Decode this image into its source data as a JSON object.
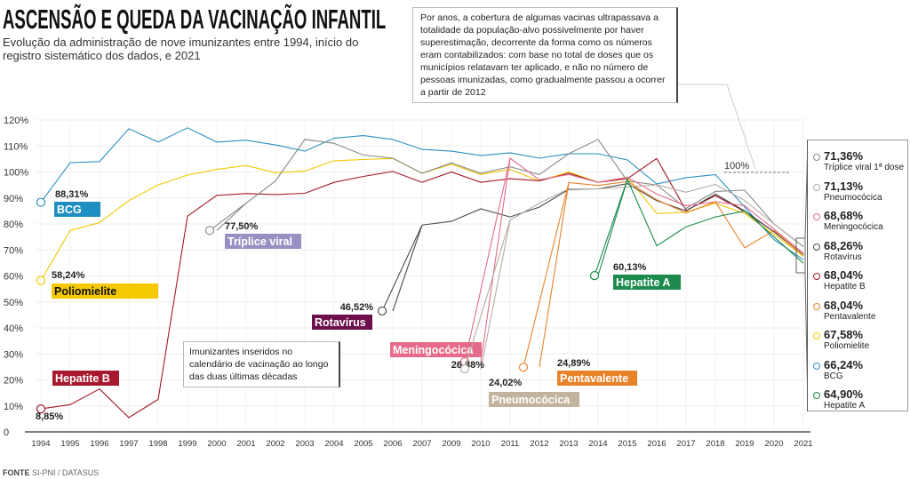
{
  "title": "ASCENSÃO E QUEDA DA VACINAÇÃO INFANTIL",
  "subtitle": "Evolução da administração de nove imunizantes entre 1994, início do registro sistemático dos dados, e 2021",
  "note_top": "Por anos, a cobertura de algumas vacinas ultrapassava a totalidade da população-alvo possivelmente por haver superestimação, decorrente da forma como os números eram contabilizados: com base no total de doses que os municípios relatavam ter aplicado, e não no número de pessoas imunizadas, como gradualmente passou a ocorrer a partir de 2012",
  "note_bottom": "Imunizantes inseridos no calendário de vacinação ao longo das duas últimas décadas",
  "source_label": "FONTE",
  "source_text": "SI-PNI / DATASUS",
  "legend": [
    {
      "value": "71,36%",
      "name": "Tríplice viral 1ª dose",
      "color": "#8a8a8a"
    },
    {
      "value": "71,13%",
      "name": "Pneumocócica",
      "color": "#b5aca2"
    },
    {
      "value": "68,68%",
      "name": "Meningocócica",
      "color": "#e36b88"
    },
    {
      "value": "68,26%",
      "name": "Rotavírus",
      "color": "#4a4a4a"
    },
    {
      "value": "68,04%",
      "name": "Hepatite B",
      "color": "#a3182b"
    },
    {
      "value": "68,04%",
      "name": "Pentavalente",
      "color": "#e8832a"
    },
    {
      "value": "67,58%",
      "name": "Poliomielite",
      "color": "#f0c800"
    },
    {
      "value": "66,24%",
      "name": "BCG",
      "color": "#2a8fbd"
    },
    {
      "value": "64,90%",
      "name": "Hepatite A",
      "color": "#1b8a4c"
    }
  ],
  "chart_data": {
    "type": "line",
    "categories": [
      "1994",
      "1995",
      "1996",
      "1997",
      "1998",
      "1999",
      "2000",
      "2001",
      "2002",
      "2003",
      "2004",
      "2005",
      "2006",
      "2007",
      "2009",
      "2010",
      "2011",
      "2012",
      "2013",
      "2014",
      "2015",
      "2016",
      "2017",
      "2018",
      "2019",
      "2020",
      "2021"
    ],
    "yticks": [
      "0",
      "10%",
      "20%",
      "30%",
      "40%",
      "50%",
      "60%",
      "70%",
      "80%",
      "90%",
      "100%",
      "110%",
      "120%"
    ],
    "ylim": [
      0,
      120
    ],
    "reference_line": {
      "value": 100,
      "label": "100%"
    },
    "grid": true,
    "series": [
      {
        "name": "BCG",
        "color": "#2a8fbd",
        "label_color": "#1e8fc0",
        "label_text": "#fff",
        "start_label": "88,31%",
        "values": [
          88.31,
          103.6,
          104,
          116.6,
          111.5,
          117,
          111.5,
          112.2,
          110.4,
          108,
          113,
          114,
          112.5,
          108.7,
          108,
          106.3,
          107.4,
          105.3,
          107,
          107,
          104.6,
          95.4,
          97.8,
          99,
          86.5,
          74,
          66.24
        ]
      },
      {
        "name": "Poliomielite",
        "color": "#f0c800",
        "label_color": "#f5c800",
        "label_text": "#111",
        "start_label": "58,24%",
        "values": [
          58.24,
          77.5,
          80.5,
          89,
          95,
          98.8,
          101,
          102.5,
          99.7,
          100.3,
          104.3,
          104.8,
          105.2,
          99.5,
          103,
          99,
          101,
          96.5,
          100,
          96,
          98,
          84,
          84.5,
          88,
          84,
          76,
          67.58
        ]
      },
      {
        "name": "Hepatite B",
        "color": "#a3182b",
        "label_color": "#a6192e",
        "label_text": "#fff",
        "start_label": "8,85%",
        "values": [
          8.85,
          10.5,
          16.5,
          5.5,
          12.5,
          83,
          91,
          91.7,
          91.3,
          91.8,
          96,
          98.3,
          100.2,
          96,
          100,
          96,
          97.4,
          96.6,
          99.5,
          96,
          97.4,
          105.2,
          85.2,
          90.9,
          84.8,
          77,
          68.04
        ]
      },
      {
        "name": "Tríplice viral",
        "color": "#8a8a8a",
        "label_color": "#9a8fc3",
        "label_text": "#fff",
        "start_label": "77,50%",
        "values": [
          null,
          null,
          null,
          null,
          null,
          null,
          77.5,
          88,
          96.5,
          112.5,
          111,
          106.5,
          105.3,
          99.5,
          103.5,
          99.5,
          102,
          99,
          107,
          112.5,
          96.5,
          95,
          86,
          92.5,
          93,
          80,
          71.36
        ]
      },
      {
        "name": "Rotavírus",
        "color": "#4a4a4a",
        "label_color": "#6d0e4d",
        "label_text": "#fff",
        "start_label": "46,52%",
        "values": [
          null,
          null,
          null,
          null,
          null,
          null,
          null,
          null,
          null,
          null,
          null,
          null,
          46.52,
          79.6,
          81,
          85.8,
          82.7,
          86.5,
          93.3,
          93.5,
          95.5,
          89,
          85,
          91.5,
          85,
          77,
          68.26
        ]
      },
      {
        "name": "Meningocócica",
        "color": "#e36b88",
        "label_color": "#e56b8a",
        "label_text": "#fff",
        "start_label": "26,88%",
        "values": [
          null,
          null,
          null,
          null,
          null,
          null,
          null,
          null,
          null,
          null,
          null,
          null,
          null,
          null,
          null,
          26.88,
          105.3,
          97,
          99,
          96,
          98,
          91.5,
          87,
          88.5,
          87,
          78,
          68.68
        ]
      },
      {
        "name": "Pneumocócica",
        "color": "#b5aca2",
        "label_color": "#c2b39e",
        "label_text": "#fff",
        "start_label": "24,02%",
        "values": [
          null,
          null,
          null,
          null,
          null,
          null,
          null,
          null,
          null,
          null,
          null,
          null,
          null,
          null,
          null,
          24.02,
          81.5,
          88,
          93.5,
          93.5,
          94.2,
          95,
          92.2,
          95.2,
          89,
          80,
          71.13
        ]
      },
      {
        "name": "Pentavalente",
        "color": "#e8832a",
        "label_color": "#e8832a",
        "label_text": "#fff",
        "start_label": "24,89%",
        "values": [
          null,
          null,
          null,
          null,
          null,
          null,
          null,
          null,
          null,
          null,
          null,
          null,
          null,
          null,
          null,
          null,
          null,
          24.89,
          95.9,
          94.8,
          96.3,
          89.3,
          84.2,
          88.5,
          70.8,
          77.5,
          68.04
        ]
      },
      {
        "name": "Hepatite A",
        "color": "#1b8a4c",
        "label_color": "#1b8a4c",
        "label_text": "#fff",
        "start_label": "60,13%",
        "values": [
          null,
          null,
          null,
          null,
          null,
          null,
          null,
          null,
          null,
          null,
          null,
          null,
          null,
          null,
          null,
          null,
          null,
          null,
          null,
          60.13,
          97.1,
          71.6,
          78.9,
          82.7,
          85,
          75,
          64.9
        ]
      }
    ]
  }
}
